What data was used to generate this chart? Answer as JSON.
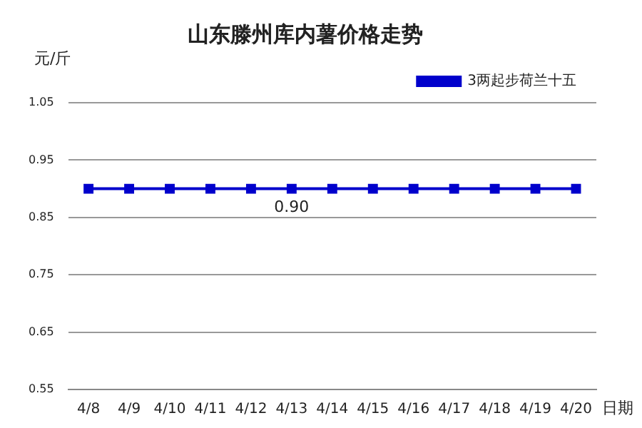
{
  "chart_data": {
    "type": "line",
    "title": "山东滕州库内薯价格走势",
    "ylabel": "元/斤",
    "xlabel": "日期",
    "categories": [
      "4/8",
      "4/9",
      "4/10",
      "4/11",
      "4/12",
      "4/13",
      "4/14",
      "4/15",
      "4/16",
      "4/17",
      "4/18",
      "4/19",
      "4/20"
    ],
    "series": [
      {
        "name": "3两起步荷兰十五",
        "color": "#0000cc",
        "values": [
          0.9,
          0.9,
          0.9,
          0.9,
          0.9,
          0.9,
          0.9,
          0.9,
          0.9,
          0.9,
          0.9,
          0.9,
          0.9
        ],
        "value_labels": [
          null,
          null,
          null,
          null,
          null,
          "0.90",
          null,
          null,
          null,
          null,
          null,
          null,
          null
        ]
      }
    ],
    "ylim": [
      0.55,
      1.05
    ],
    "yticks": [
      0.55,
      0.65,
      0.75,
      0.85,
      0.95,
      1.05
    ],
    "grid": "y",
    "legend": "top right",
    "marker": "square",
    "line_style": "solid"
  }
}
